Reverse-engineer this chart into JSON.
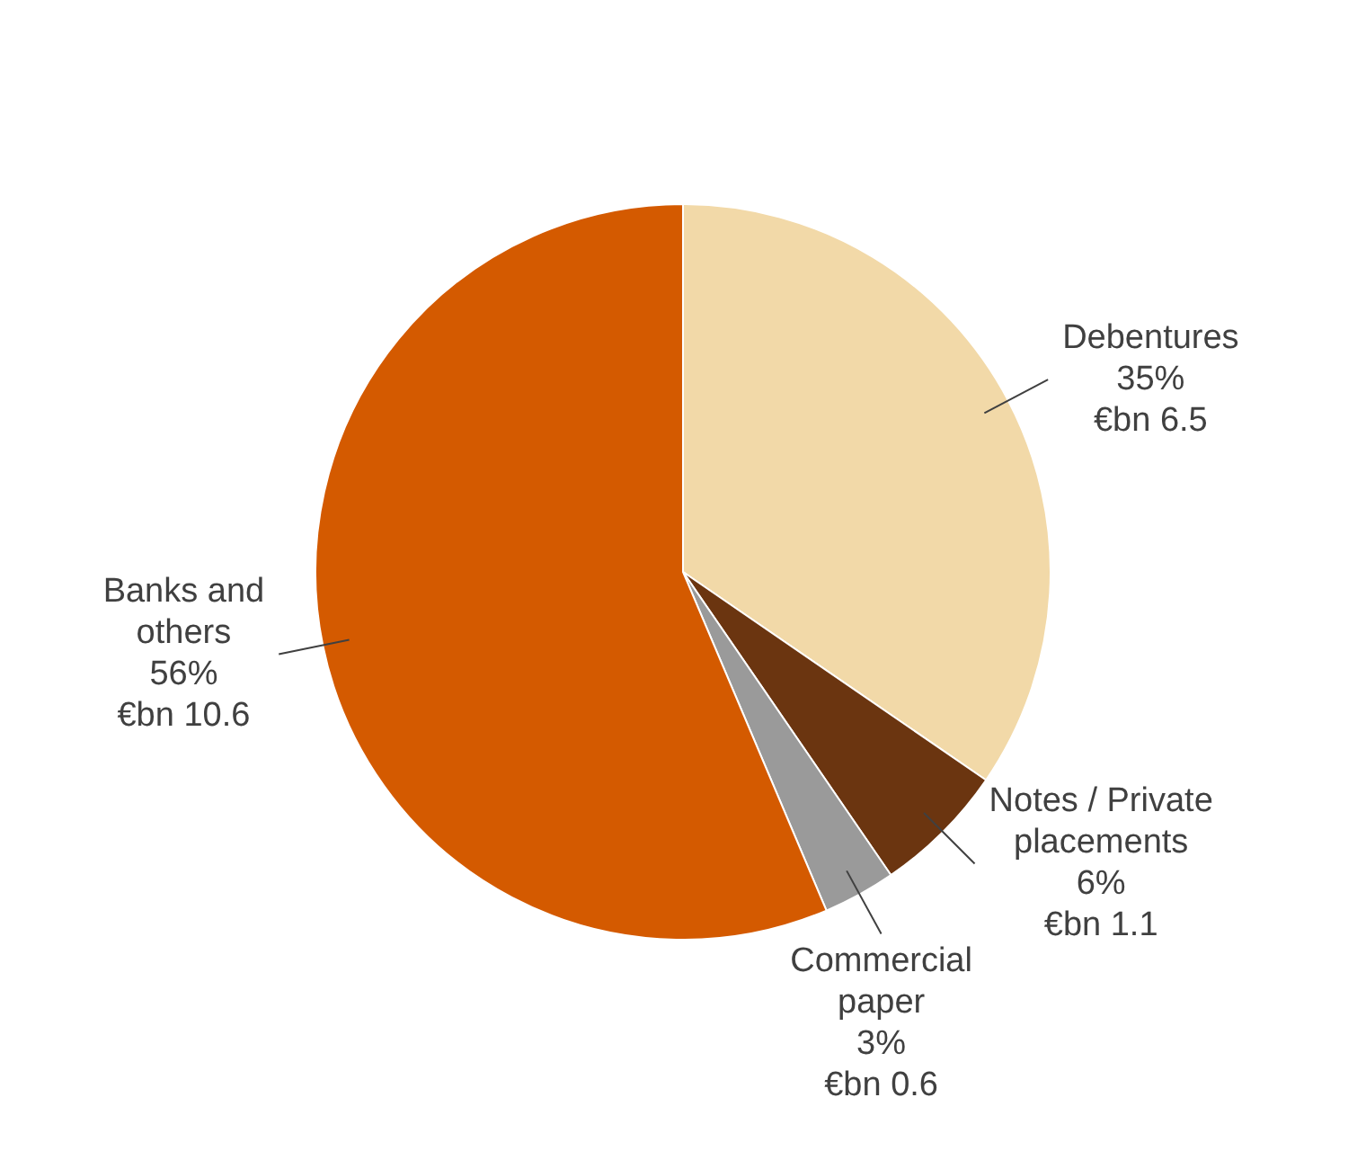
{
  "chart_data": {
    "type": "pie",
    "categories": [
      "Debentures",
      "Notes / Private placements",
      "Commercial paper",
      "Banks and others"
    ],
    "values": [
      6.5,
      1.1,
      0.6,
      10.6
    ],
    "value_labels": [
      "35%\n€bn 6.5",
      "6%\n€bn 1.1",
      "3%\n€bn 0.6",
      "56%\n€bn 10.6"
    ],
    "colors": [
      "#f2d9a8",
      "#6b3510",
      "#9a9a9a",
      "#d45a00"
    ],
    "legend": false
  }
}
